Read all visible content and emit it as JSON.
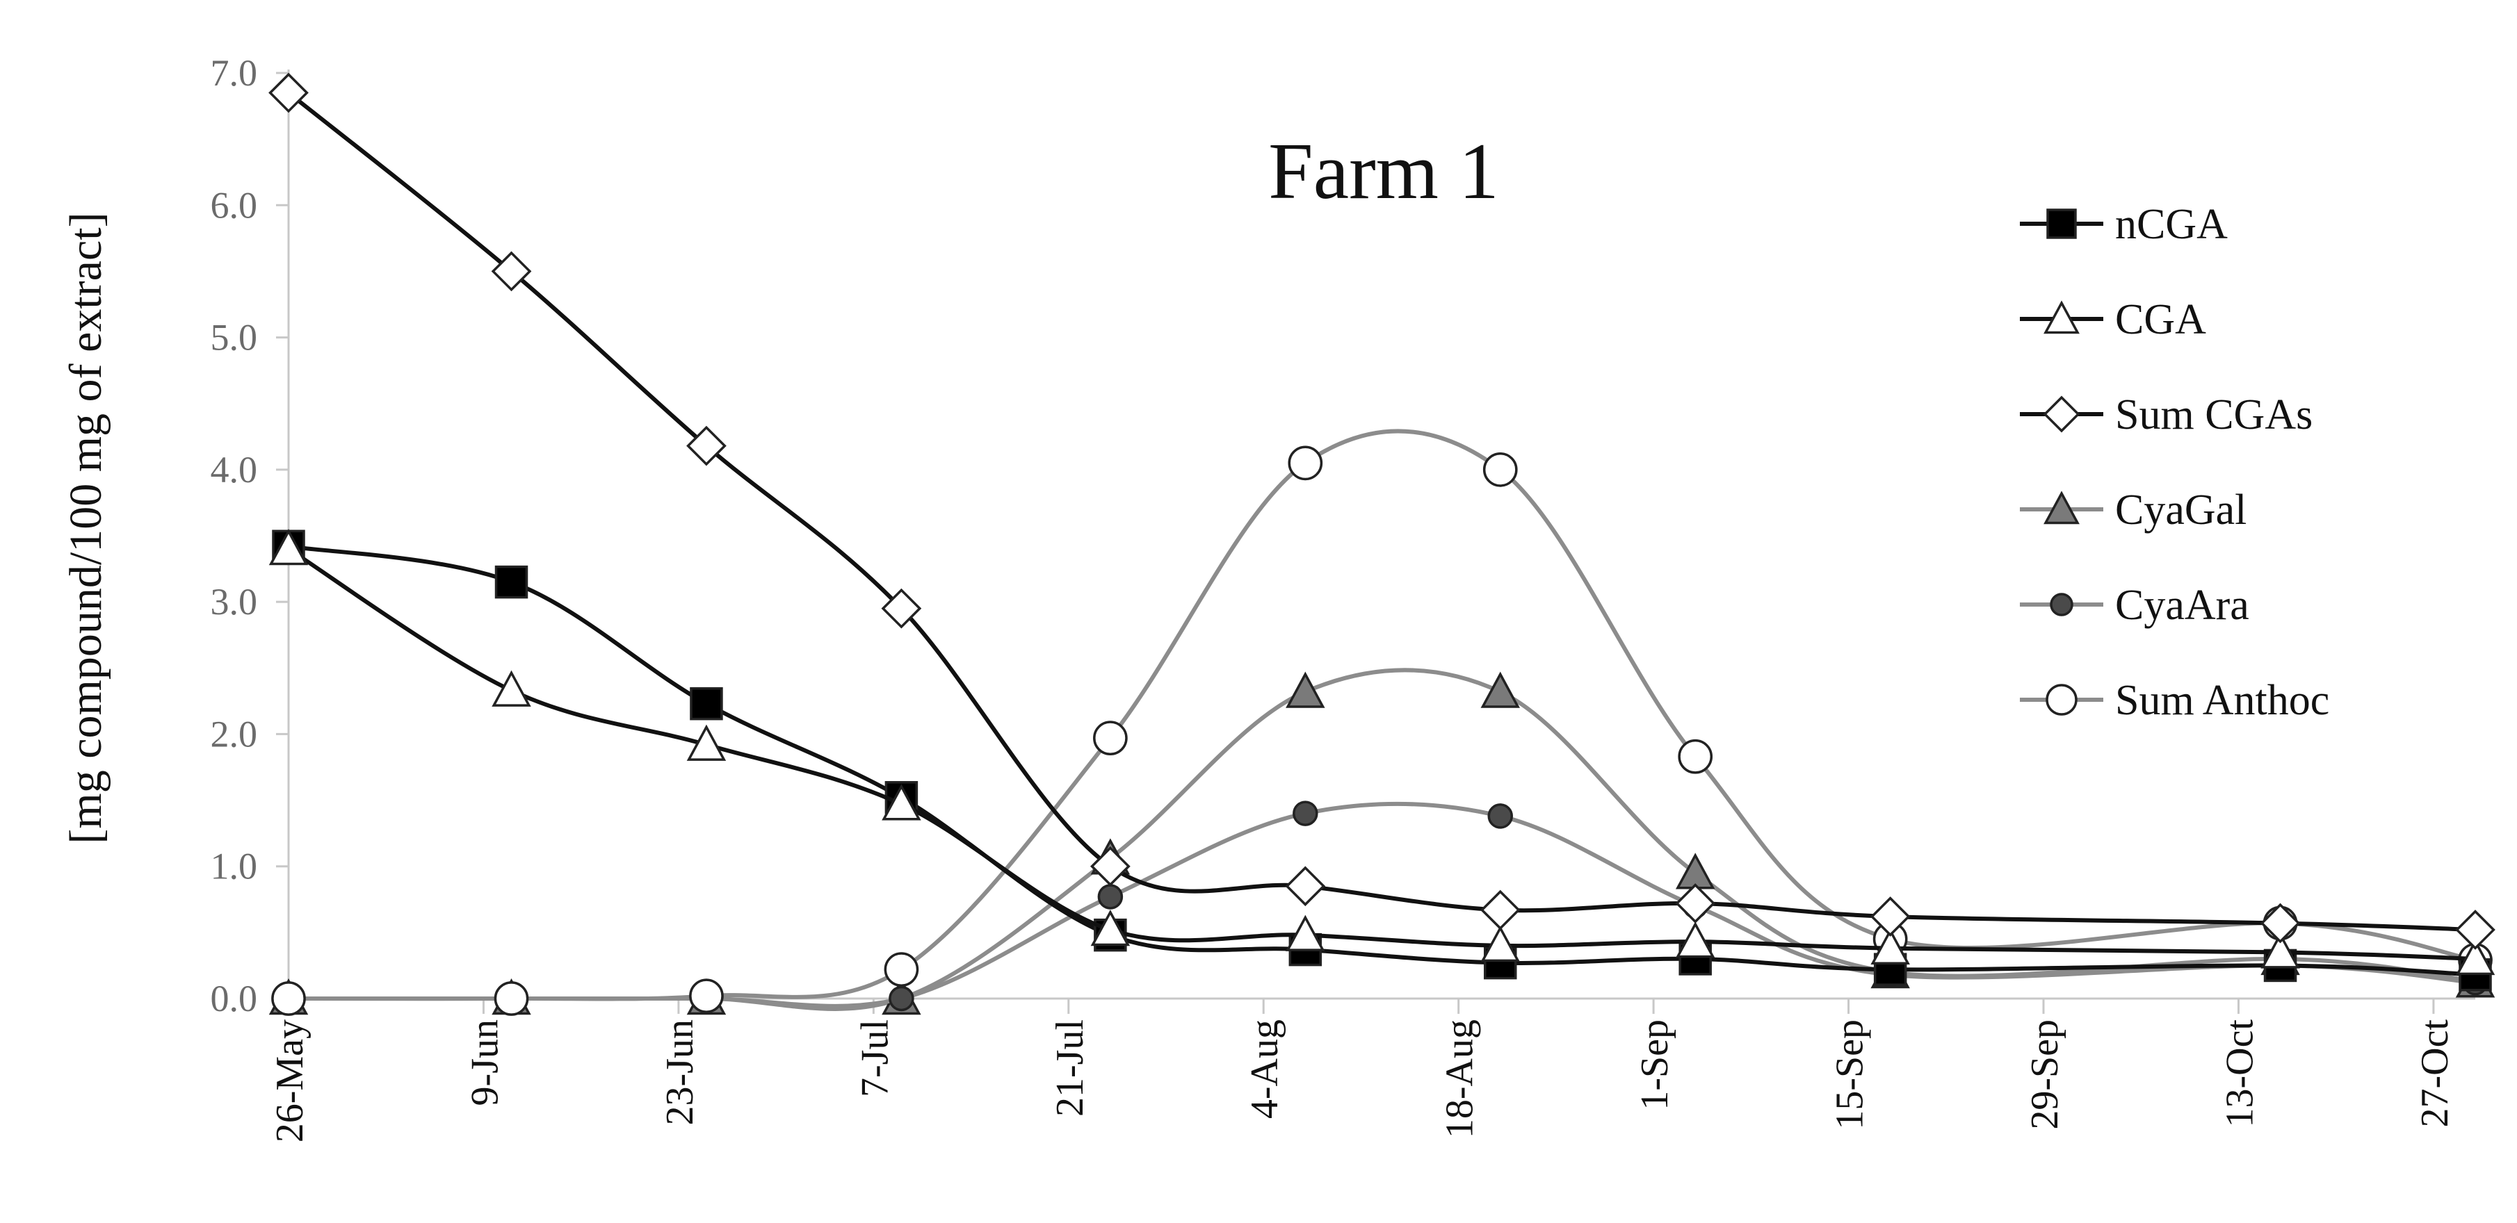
{
  "chart_data": {
    "type": "line",
    "title": "Farm 1",
    "xlabel": "",
    "ylabel": "[mg compound/100 mg of extract]",
    "ylim": [
      0,
      7
    ],
    "yticks": [
      "0.0",
      "1.0",
      "2.0",
      "3.0",
      "4.0",
      "5.0",
      "6.0",
      "7.0"
    ],
    "xlim_days": [
      0,
      157
    ],
    "xticks": [
      {
        "label": "26-May",
        "day": 0
      },
      {
        "label": "9-Jun",
        "day": 14
      },
      {
        "label": "23-Jun",
        "day": 28
      },
      {
        "label": "7-Jul",
        "day": 42
      },
      {
        "label": "21-Jul",
        "day": 56
      },
      {
        "label": "4-Aug",
        "day": 70
      },
      {
        "label": "18-Aug",
        "day": 84
      },
      {
        "label": "1-Sep",
        "day": 98
      },
      {
        "label": "15-Sep",
        "day": 112
      },
      {
        "label": "29-Sep",
        "day": 126
      },
      {
        "label": "13-Oct",
        "day": 140
      },
      {
        "label": "27-Oct",
        "day": 154
      }
    ],
    "legend_position": "right",
    "x_dates": [
      "26-May",
      "11-Jun",
      "25-Jun",
      "9-Jul",
      "24-Jul",
      "7-Aug",
      "21-Aug",
      "4-Sep",
      "18-Sep",
      "16-Oct",
      "30-Oct"
    ],
    "x_days": [
      0,
      16,
      30,
      44,
      59,
      73,
      87,
      101,
      115,
      143,
      157
    ],
    "series": [
      {
        "name": "nCGA",
        "marker": "square",
        "marker_fill": "#000000",
        "line_color": "#111111",
        "values": [
          3.42,
          3.15,
          2.23,
          1.52,
          0.48,
          0.37,
          0.27,
          0.3,
          0.22,
          0.25,
          0.18
        ]
      },
      {
        "name": "CGA",
        "marker": "triangle",
        "marker_fill": "#ffffff",
        "line_color": "#111111",
        "values": [
          3.4,
          2.33,
          1.92,
          1.47,
          0.52,
          0.48,
          0.4,
          0.43,
          0.38,
          0.35,
          0.3
        ]
      },
      {
        "name": "Sum CGAs",
        "marker": "diamond",
        "marker_fill": "#ffffff",
        "line_color": "#111111",
        "values": [
          6.85,
          5.5,
          4.18,
          2.95,
          1.0,
          0.85,
          0.67,
          0.72,
          0.62,
          0.57,
          0.52
        ]
      },
      {
        "name": "CyaGal",
        "marker": "triangle",
        "marker_fill": "#7a7a7a",
        "line_color": "#8c8c8c",
        "values": [
          0.0,
          0.0,
          0.0,
          0.0,
          1.06,
          2.32,
          2.32,
          0.95,
          0.2,
          0.3,
          0.13
        ]
      },
      {
        "name": "CyaAra",
        "marker": "circle-small",
        "marker_fill": "#4a4a4a",
        "line_color": "#8c8c8c",
        "values": [
          0.0,
          0.0,
          0.0,
          0.0,
          0.77,
          1.4,
          1.38,
          0.7,
          0.18,
          0.25,
          0.12
        ]
      },
      {
        "name": "Sum Anthoc",
        "marker": "circle",
        "marker_fill": "#ffffff",
        "line_color": "#8c8c8c",
        "values": [
          0.0,
          0.0,
          0.02,
          0.22,
          1.97,
          4.05,
          4.0,
          1.83,
          0.45,
          0.57,
          0.29
        ]
      }
    ]
  }
}
